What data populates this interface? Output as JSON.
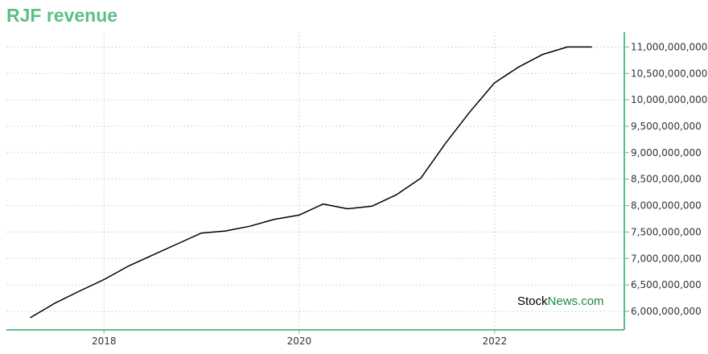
{
  "title": "RJF revenue",
  "watermark": {
    "part1": "Stock",
    "part2": "News",
    "part3": ".com"
  },
  "colors": {
    "title": "#5bbf85",
    "axis": "#5bbf85",
    "grid": "#a8dcc0",
    "line": "#000000",
    "watermark_green": "#1f8a3a"
  },
  "chart_data": {
    "type": "line",
    "title": "RJF revenue",
    "xlabel": "",
    "ylabel": "",
    "x_ticks": [
      "2018",
      "2020",
      "2022"
    ],
    "y_ticks": [
      "6,000,000,000",
      "6,500,000,000",
      "7,000,000,000",
      "7,500,000,000",
      "8,000,000,000",
      "8,500,000,000",
      "9,000,000,000",
      "9,500,000,000",
      "10,000,000,000",
      "10,500,000,000",
      "11,000,000,000"
    ],
    "ylim": [
      5650000000,
      11280000000
    ],
    "xlim": [
      "2017-01-01",
      "2023-05-01"
    ],
    "grid": true,
    "legend": "none",
    "series": [
      {
        "x": [
          "2017-03-31",
          "2017-06-30",
          "2017-09-30",
          "2017-12-31",
          "2018-03-31",
          "2018-06-30",
          "2018-09-30",
          "2018-12-31",
          "2019-03-31",
          "2019-06-30",
          "2019-09-30",
          "2019-12-31",
          "2020-03-31",
          "2020-06-30",
          "2020-09-30",
          "2020-12-31",
          "2021-03-31",
          "2021-06-30",
          "2021-09-30",
          "2021-12-31",
          "2022-03-31",
          "2022-06-30",
          "2022-09-30",
          "2022-12-31"
        ],
        "values": [
          5880000000,
          6150000000,
          6380000000,
          6600000000,
          6850000000,
          7060000000,
          7270000000,
          7480000000,
          7520000000,
          7610000000,
          7740000000,
          7820000000,
          8030000000,
          7940000000,
          7990000000,
          8210000000,
          8520000000,
          9170000000,
          9770000000,
          10320000000,
          10620000000,
          10860000000,
          11000000000,
          11000000000
        ]
      }
    ]
  }
}
